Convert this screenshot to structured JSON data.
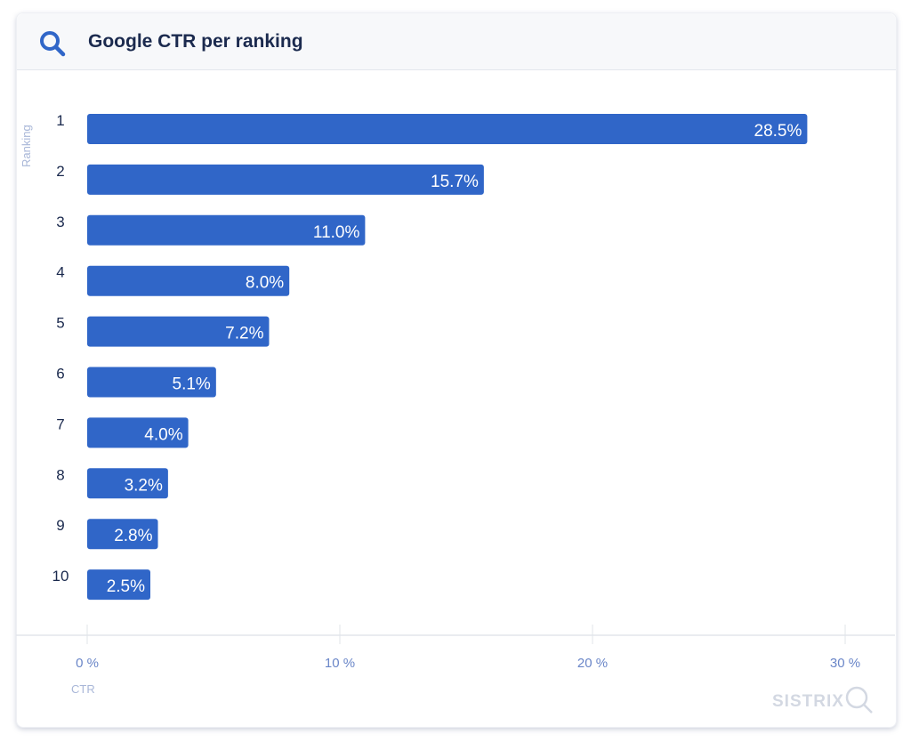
{
  "header": {
    "title": "Google CTR per ranking",
    "icon": "search-icon"
  },
  "brand": {
    "logo": "SISTRIX"
  },
  "chart_data": {
    "type": "bar",
    "orientation": "horizontal",
    "title": "Google CTR per ranking",
    "xlabel": "CTR",
    "ylabel": "Ranking",
    "categories": [
      "1",
      "2",
      "3",
      "4",
      "5",
      "6",
      "7",
      "8",
      "9",
      "10"
    ],
    "values": [
      28.5,
      15.7,
      11.0,
      8.0,
      7.2,
      5.1,
      4.0,
      3.2,
      2.8,
      2.5
    ],
    "data_labels": [
      "28.5%",
      "15.7%",
      "11.0%",
      "8.0%",
      "7.2%",
      "5.1%",
      "4.0%",
      "3.2%",
      "2.8%",
      "2.5%"
    ],
    "xlim": [
      0,
      30
    ],
    "xticks": [
      "0 %",
      "10 %",
      "20 %",
      "30 %"
    ],
    "bar_color": "#3066c8",
    "grid": false
  }
}
